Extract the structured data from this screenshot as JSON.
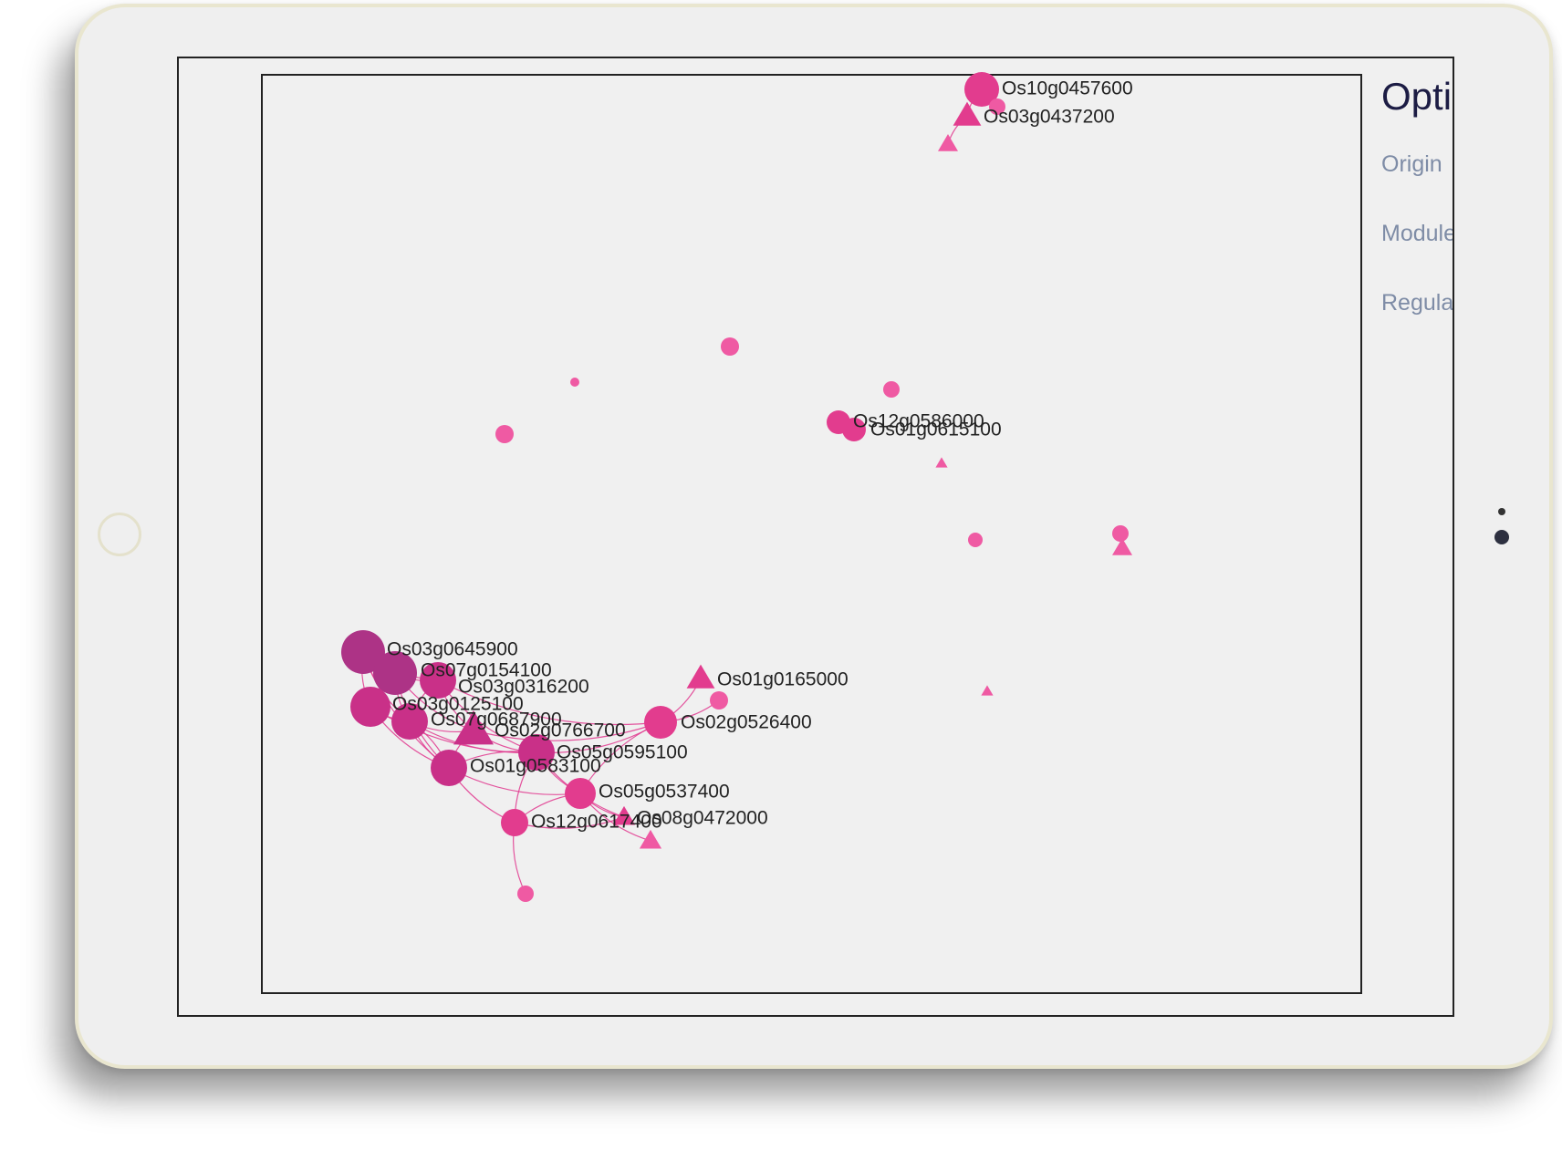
{
  "options_panel": {
    "title": "Opti",
    "items": [
      "Origin",
      "Module",
      "Regula"
    ]
  },
  "colors": {
    "node_deep": "#ad3386",
    "node_mid": "#c93088",
    "node_pink": "#e23c8e",
    "node_light": "#ef5aa3",
    "edge": "#e0378e",
    "label": "#222222"
  },
  "network": {
    "nodes": [
      {
        "id": "n1",
        "shape": "circle",
        "size": 24,
        "color": "node_deep",
        "label": "Os03g0645900"
      },
      {
        "id": "n2",
        "shape": "circle",
        "size": 24,
        "color": "node_deep",
        "label": "Os07g0154100"
      },
      {
        "id": "n3",
        "shape": "circle",
        "size": 20,
        "color": "node_mid",
        "label": "Os03g0316200"
      },
      {
        "id": "n4",
        "shape": "circle",
        "size": 22,
        "color": "node_mid",
        "label": "Os03g0125100"
      },
      {
        "id": "n5",
        "shape": "circle",
        "size": 20,
        "color": "node_mid",
        "label": "Os07g0687900"
      },
      {
        "id": "n6",
        "shape": "triangle",
        "size": 20,
        "color": "node_mid",
        "label": "Os02g0766700"
      },
      {
        "id": "n7",
        "shape": "circle",
        "size": 20,
        "color": "node_mid",
        "label": "Os05g0595100"
      },
      {
        "id": "n8",
        "shape": "circle",
        "size": 20,
        "color": "node_mid",
        "label": "Os01g0583100"
      },
      {
        "id": "n9",
        "shape": "circle",
        "size": 18,
        "color": "node_pink",
        "label": "Os02g0526400"
      },
      {
        "id": "n10",
        "shape": "triangle",
        "size": 14,
        "color": "node_pink",
        "label": "Os01g0165000"
      },
      {
        "id": "n11",
        "shape": "circle",
        "size": 10,
        "color": "node_light",
        "label": ""
      },
      {
        "id": "n12",
        "shape": "circle",
        "size": 17,
        "color": "node_pink",
        "label": "Os05g0537400"
      },
      {
        "id": "n13",
        "shape": "circle",
        "size": 15,
        "color": "node_pink",
        "label": "Os12g0617400"
      },
      {
        "id": "n14",
        "shape": "triangle",
        "size": 11,
        "color": "node_pink",
        "label": "Os08g0472000"
      },
      {
        "id": "n15",
        "shape": "triangle",
        "size": 11,
        "color": "node_light",
        "label": ""
      },
      {
        "id": "n16",
        "shape": "circle",
        "size": 9,
        "color": "node_light",
        "label": ""
      },
      {
        "id": "n17",
        "shape": "circle",
        "size": 19,
        "color": "node_pink",
        "label": "Os10g0457600"
      },
      {
        "id": "n18",
        "shape": "triangle",
        "size": 14,
        "color": "node_pink",
        "label": "Os03g0437200"
      },
      {
        "id": "n19",
        "shape": "circle",
        "size": 9,
        "color": "node_light",
        "label": ""
      },
      {
        "id": "n20",
        "shape": "triangle",
        "size": 10,
        "color": "node_light",
        "label": ""
      },
      {
        "id": "n21",
        "shape": "circle",
        "size": 13,
        "color": "node_pink",
        "label": "Os12g0586000"
      },
      {
        "id": "n22",
        "shape": "circle",
        "size": 13,
        "color": "node_pink",
        "label": "Os01g0615100"
      },
      {
        "id": "n23",
        "shape": "circle",
        "size": 9,
        "color": "node_light",
        "label": ""
      },
      {
        "id": "n24",
        "shape": "triangle",
        "size": 6,
        "color": "node_light",
        "label": ""
      },
      {
        "id": "n25",
        "shape": "circle",
        "size": 10,
        "color": "node_light",
        "label": ""
      },
      {
        "id": "n26",
        "shape": "circle",
        "size": 5,
        "color": "node_light",
        "label": ""
      },
      {
        "id": "n27",
        "shape": "circle",
        "size": 10,
        "color": "node_light",
        "label": ""
      },
      {
        "id": "n28",
        "shape": "circle",
        "size": 8,
        "color": "node_light",
        "label": ""
      },
      {
        "id": "n29",
        "shape": "circle",
        "size": 9,
        "color": "node_light",
        "label": ""
      },
      {
        "id": "n30",
        "shape": "triangle",
        "size": 10,
        "color": "node_light",
        "label": ""
      },
      {
        "id": "n31",
        "shape": "triangle",
        "size": 6,
        "color": "node_light",
        "label": ""
      }
    ],
    "edges": [
      [
        "n1",
        "n2"
      ],
      [
        "n1",
        "n3"
      ],
      [
        "n1",
        "n4"
      ],
      [
        "n1",
        "n5"
      ],
      [
        "n1",
        "n8"
      ],
      [
        "n2",
        "n3"
      ],
      [
        "n2",
        "n4"
      ],
      [
        "n2",
        "n5"
      ],
      [
        "n2",
        "n6"
      ],
      [
        "n2",
        "n8"
      ],
      [
        "n3",
        "n5"
      ],
      [
        "n3",
        "n6"
      ],
      [
        "n3",
        "n7"
      ],
      [
        "n3",
        "n9"
      ],
      [
        "n4",
        "n5"
      ],
      [
        "n4",
        "n8"
      ],
      [
        "n4",
        "n7"
      ],
      [
        "n5",
        "n6"
      ],
      [
        "n5",
        "n8"
      ],
      [
        "n5",
        "n7"
      ],
      [
        "n6",
        "n7"
      ],
      [
        "n6",
        "n8"
      ],
      [
        "n6",
        "n9"
      ],
      [
        "n7",
        "n8"
      ],
      [
        "n7",
        "n9"
      ],
      [
        "n7",
        "n12"
      ],
      [
        "n7",
        "n13"
      ],
      [
        "n7",
        "n14"
      ],
      [
        "n8",
        "n12"
      ],
      [
        "n8",
        "n13"
      ],
      [
        "n8",
        "n5"
      ],
      [
        "n9",
        "n10"
      ],
      [
        "n9",
        "n11"
      ],
      [
        "n9",
        "n12"
      ],
      [
        "n12",
        "n13"
      ],
      [
        "n12",
        "n14"
      ],
      [
        "n12",
        "n15"
      ],
      [
        "n13",
        "n16"
      ],
      [
        "n13",
        "n14"
      ],
      [
        "n17",
        "n18"
      ],
      [
        "n17",
        "n19"
      ],
      [
        "n18",
        "n20"
      ],
      [
        "n21",
        "n22"
      ],
      [
        "n29",
        "n30"
      ]
    ]
  }
}
